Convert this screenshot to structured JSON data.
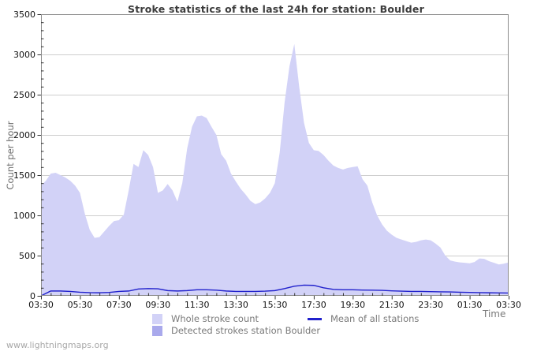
{
  "page": {
    "watermark": "www.lightningmaps.org"
  },
  "chart_data": {
    "type": "area",
    "title": "Stroke statistics of the last 24h for station: Boulder",
    "xlabel": "Time",
    "ylabel": "Count per hour",
    "ylim": [
      0,
      3500
    ],
    "y_major_step": 500,
    "y_minor_step": 100,
    "x_tick_labels": [
      "03:30",
      "05:30",
      "07:30",
      "09:30",
      "11:30",
      "13:30",
      "15:30",
      "17:30",
      "19:30",
      "21:30",
      "23:30",
      "01:30",
      "03:30"
    ],
    "x_minor_per_major": 4,
    "grid": "horizontal-major",
    "legend_position": "bottom",
    "colors": {
      "whole_fill": "#d2d2f7",
      "detected_fill": "#a9a9ec",
      "mean_line": "#2121cc",
      "gridline": "#cdcdcd",
      "axis": "#8c8c8c",
      "tick": "#333333",
      "tick_label": "#111111"
    },
    "series": [
      {
        "name": "Whole stroke count",
        "render": "area",
        "color": "#d2d2f7",
        "start": "03:30",
        "interval_minutes": 15,
        "values": [
          1370,
          1430,
          1520,
          1530,
          1500,
          1470,
          1430,
          1370,
          1280,
          1020,
          820,
          720,
          730,
          800,
          870,
          930,
          940,
          1010,
          1310,
          1640,
          1600,
          1810,
          1750,
          1600,
          1280,
          1310,
          1390,
          1310,
          1170,
          1400,
          1830,
          2100,
          2230,
          2240,
          2210,
          2100,
          2000,
          1760,
          1680,
          1520,
          1420,
          1330,
          1260,
          1180,
          1140,
          1160,
          1210,
          1280,
          1400,
          1780,
          2400,
          2850,
          3130,
          2600,
          2150,
          1900,
          1810,
          1800,
          1750,
          1680,
          1620,
          1590,
          1570,
          1590,
          1600,
          1610,
          1450,
          1370,
          1160,
          1000,
          890,
          810,
          760,
          720,
          700,
          680,
          660,
          670,
          690,
          700,
          690,
          650,
          600,
          500,
          440,
          425,
          415,
          410,
          405,
          420,
          465,
          460,
          430,
          410,
          390,
          400,
          415
        ]
      },
      {
        "name": "Detected strokes station Boulder",
        "render": "area",
        "color": "#a9a9ec",
        "start": "03:30",
        "interval_minutes": 30,
        "values": [
          0,
          0,
          0,
          0,
          0,
          0,
          0,
          0,
          0,
          0,
          0,
          0,
          0,
          0,
          0,
          0,
          0,
          0,
          0,
          0,
          0,
          0,
          0,
          0,
          0,
          0,
          0,
          0,
          0,
          0,
          0,
          0,
          0,
          0,
          0,
          0,
          0,
          0,
          0,
          0,
          0,
          0,
          0,
          0,
          0,
          0,
          0,
          0,
          0
        ]
      },
      {
        "name": "Mean of all stations",
        "render": "line",
        "color": "#2121cc",
        "start": "03:30",
        "interval_minutes": 30,
        "values": [
          0,
          60,
          60,
          55,
          45,
          40,
          38,
          42,
          55,
          60,
          85,
          90,
          88,
          65,
          60,
          65,
          75,
          75,
          70,
          60,
          55,
          55,
          55,
          58,
          65,
          90,
          120,
          133,
          130,
          100,
          80,
          75,
          75,
          72,
          70,
          68,
          62,
          58,
          55,
          55,
          52,
          50,
          48,
          45,
          42,
          40,
          38,
          36,
          35
        ]
      }
    ]
  }
}
